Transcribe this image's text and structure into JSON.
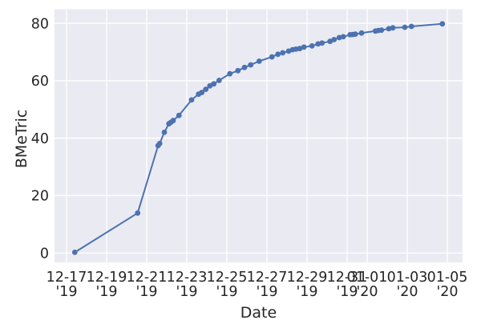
{
  "chart_data": {
    "type": "line",
    "title": "",
    "xlabel": "Date",
    "ylabel": "BMeTric",
    "legend": "none",
    "grid": "on",
    "plot_bg_color": "#eaeaf2",
    "grid_color": "#ffffff",
    "text_color": "#262626",
    "x_axis": {
      "unit": "days after 12-17 '19 (fractional = time of day)",
      "range_days": [
        -0.6,
        19.76
      ],
      "ticks": [
        {
          "day": 0,
          "date": "12-17",
          "year": "'19"
        },
        {
          "day": 2,
          "date": "12-19",
          "year": "'19"
        },
        {
          "day": 4,
          "date": "12-21",
          "year": "'19"
        },
        {
          "day": 6,
          "date": "12-23",
          "year": "'19"
        },
        {
          "day": 8,
          "date": "12-25",
          "year": "'19"
        },
        {
          "day": 10,
          "date": "12-27",
          "year": "'19"
        },
        {
          "day": 12,
          "date": "12-29",
          "year": "'19"
        },
        {
          "day": 14,
          "date": "12-31",
          "year": "'19"
        },
        {
          "day": 15,
          "date": "01-01",
          "year": "'20"
        },
        {
          "day": 17,
          "date": "01-03",
          "year": "'20"
        },
        {
          "day": 19,
          "date": "01-05",
          "year": "'20"
        }
      ]
    },
    "y_axis": {
      "range": [
        -3.3,
        84.9
      ],
      "ticks": [
        0,
        20,
        40,
        60,
        80
      ]
    },
    "series": [
      {
        "name": "BMeTric",
        "color": "#4c72b0",
        "marker": "circle",
        "x_days": [
          0.41,
          3.55,
          4.57,
          4.65,
          4.88,
          5.11,
          5.21,
          5.32,
          5.61,
          6.24,
          6.59,
          6.75,
          6.95,
          7.15,
          7.35,
          7.61,
          8.15,
          8.55,
          8.88,
          9.19,
          9.61,
          10.25,
          10.55,
          10.79,
          11.08,
          11.28,
          11.45,
          11.64,
          11.85,
          12.25,
          12.55,
          12.75,
          13.15,
          13.35,
          13.61,
          13.81,
          14.15,
          14.28,
          14.41,
          14.72,
          15.41,
          15.55,
          15.71,
          16.08,
          16.28,
          16.88,
          17.21,
          18.75
        ],
        "y": [
          0.2,
          13.9,
          37.4,
          38.1,
          42.0,
          45.0,
          45.5,
          46.1,
          47.9,
          53.3,
          55.3,
          55.9,
          57.0,
          58.2,
          58.9,
          60.1,
          62.4,
          63.5,
          64.6,
          65.5,
          66.8,
          68.3,
          69.2,
          69.7,
          70.3,
          70.8,
          71.0,
          71.2,
          71.7,
          72.1,
          72.8,
          73.1,
          73.7,
          74.3,
          75.0,
          75.3,
          76.0,
          76.1,
          76.2,
          76.6,
          77.3,
          77.5,
          77.6,
          78.1,
          78.4,
          78.6,
          78.9,
          79.8
        ]
      }
    ]
  }
}
